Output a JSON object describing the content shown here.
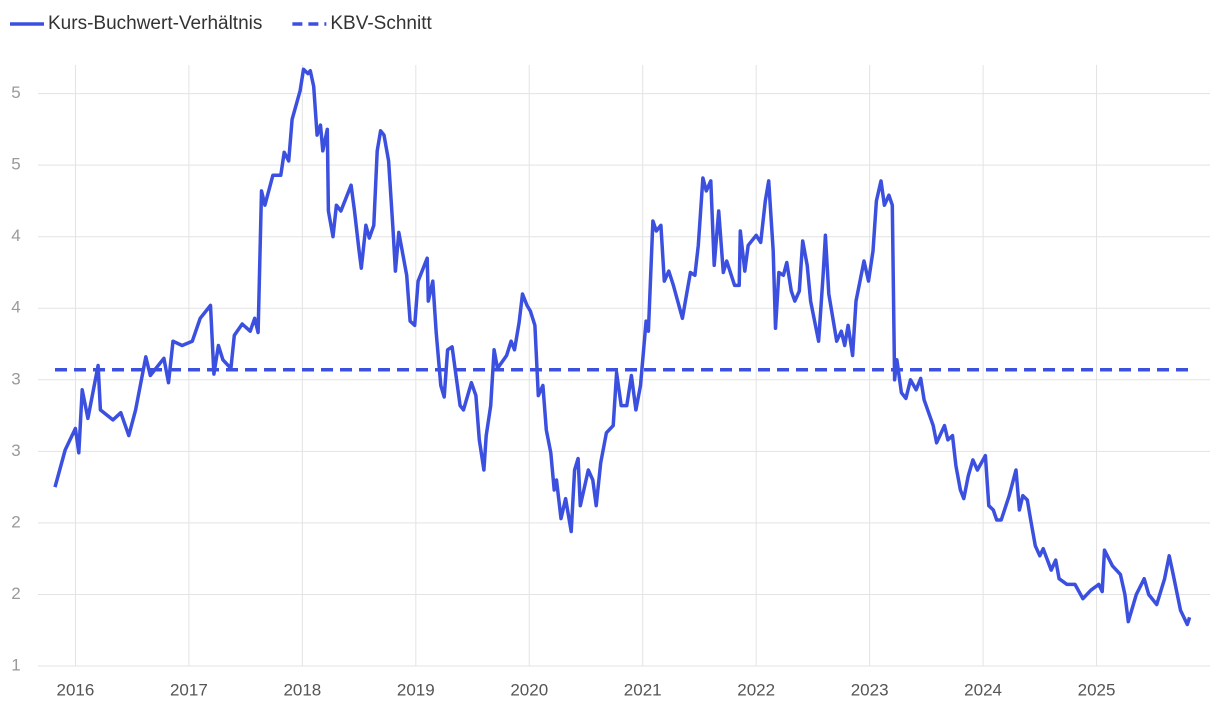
{
  "chart_data": {
    "type": "line",
    "legend": "top-left",
    "grid": true,
    "xlim": [
      2015.67,
      2026
    ],
    "ylim": [
      1,
      5.2
    ],
    "xticks": [
      2016,
      2017,
      2018,
      2019,
      2020,
      2021,
      2022,
      2023,
      2024,
      2025
    ],
    "yticks": [
      1,
      {
        "value": 1.5,
        "label": "2"
      },
      2,
      {
        "value": 2.5,
        "label": "3"
      },
      3,
      {
        "value": 3.5,
        "label": "4"
      },
      4,
      {
        "value": 4.5,
        "label": "5"
      },
      5
    ],
    "x": [
      2015.82,
      2015.91,
      2016.0,
      2016.03,
      2016.06,
      2016.11,
      2016.2,
      2016.22,
      2016.33,
      2016.4,
      2016.47,
      2016.53,
      2016.62,
      2016.66,
      2016.78,
      2016.82,
      2016.86,
      2016.94,
      2017.03,
      2017.1,
      2017.19,
      2017.22,
      2017.26,
      2017.3,
      2017.37,
      2017.4,
      2017.47,
      2017.54,
      2017.58,
      2017.61,
      2017.64,
      2017.67,
      2017.74,
      2017.81,
      2017.84,
      2017.88,
      2017.91,
      2017.98,
      2018.01,
      2018.05,
      2018.07,
      2018.1,
      2018.13,
      2018.16,
      2018.18,
      2018.22,
      2018.23,
      2018.27,
      2018.3,
      2018.34,
      2018.43,
      2018.46,
      2018.5,
      2018.52,
      2018.56,
      2018.59,
      2018.63,
      2018.66,
      2018.69,
      2018.72,
      2018.76,
      2018.8,
      2018.82,
      2018.85,
      2018.92,
      2018.95,
      2018.99,
      2019.02,
      2019.1,
      2019.11,
      2019.15,
      2019.18,
      2019.22,
      2019.25,
      2019.28,
      2019.32,
      2019.39,
      2019.42,
      2019.49,
      2019.53,
      2019.56,
      2019.6,
      2019.62,
      2019.66,
      2019.69,
      2019.72,
      2019.8,
      2019.84,
      2019.87,
      2019.91,
      2019.94,
      2019.98,
      2020.01,
      2020.05,
      2020.08,
      2020.12,
      2020.15,
      2020.19,
      2020.22,
      2020.24,
      2020.28,
      2020.32,
      2020.37,
      2020.4,
      2020.43,
      2020.45,
      2020.52,
      2020.56,
      2020.59,
      2020.63,
      2020.68,
      2020.74,
      2020.77,
      2020.81,
      2020.86,
      2020.9,
      2020.94,
      2020.98,
      2021.03,
      2021.05,
      2021.09,
      2021.12,
      2021.16,
      2021.19,
      2021.23,
      2021.27,
      2021.35,
      2021.42,
      2021.46,
      2021.49,
      2021.53,
      2021.56,
      2021.6,
      2021.63,
      2021.67,
      2021.71,
      2021.74,
      2021.81,
      2021.85,
      2021.86,
      2021.9,
      2021.93,
      2022.0,
      2022.04,
      2022.08,
      2022.11,
      2022.15,
      2022.17,
      2022.2,
      2022.24,
      2022.27,
      2022.31,
      2022.34,
      2022.38,
      2022.41,
      2022.45,
      2022.48,
      2022.55,
      2022.59,
      2022.61,
      2022.64,
      2022.71,
      2022.75,
      2022.78,
      2022.81,
      2022.85,
      2022.88,
      2022.95,
      2022.99,
      2023.03,
      2023.06,
      2023.1,
      2023.13,
      2023.17,
      2023.2,
      2023.22,
      2023.24,
      2023.28,
      2023.32,
      2023.36,
      2023.41,
      2023.45,
      2023.48,
      2023.56,
      2023.59,
      2023.66,
      2023.69,
      2023.73,
      2023.76,
      2023.8,
      2023.83,
      2023.87,
      2023.91,
      2023.95,
      2024.02,
      2024.05,
      2024.09,
      2024.12,
      2024.16,
      2024.23,
      2024.29,
      2024.32,
      2024.35,
      2024.39,
      2024.42,
      2024.46,
      2024.5,
      2024.53,
      2024.6,
      2024.64,
      2024.67,
      2024.74,
      2024.81,
      2024.88,
      2024.95,
      2025.02,
      2025.05,
      2025.07,
      2025.14,
      2025.21,
      2025.25,
      2025.28,
      2025.35,
      2025.42,
      2025.46,
      2025.53,
      2025.6,
      2025.64,
      2025.67,
      2025.74,
      2025.8,
      2025.82
    ],
    "series": [
      {
        "name": "Kurs-Buchwert-Verhältnis",
        "color": "#3c50e0",
        "values": [
          2.25,
          2.51,
          2.66,
          2.49,
          2.93,
          2.73,
          3.1,
          2.79,
          2.72,
          2.77,
          2.61,
          2.79,
          3.16,
          3.03,
          3.15,
          2.98,
          3.27,
          3.24,
          3.27,
          3.43,
          3.52,
          3.04,
          3.24,
          3.14,
          3.08,
          3.31,
          3.39,
          3.34,
          3.43,
          3.33,
          4.32,
          4.22,
          4.43,
          4.43,
          4.59,
          4.53,
          4.82,
          5.02,
          5.17,
          5.14,
          5.16,
          5.05,
          4.71,
          4.78,
          4.6,
          4.75,
          4.18,
          4.0,
          4.22,
          4.18,
          4.36,
          4.18,
          3.9,
          3.78,
          4.08,
          3.99,
          4.08,
          4.6,
          4.74,
          4.71,
          4.53,
          4.04,
          3.76,
          4.03,
          3.73,
          3.41,
          3.38,
          3.69,
          3.85,
          3.55,
          3.69,
          3.33,
          2.96,
          2.88,
          3.21,
          3.23,
          2.82,
          2.79,
          2.98,
          2.89,
          2.58,
          2.37,
          2.61,
          2.82,
          3.21,
          3.08,
          3.17,
          3.27,
          3.21,
          3.4,
          3.6,
          3.52,
          3.48,
          3.38,
          2.89,
          2.96,
          2.65,
          2.49,
          2.23,
          2.3,
          2.03,
          2.17,
          1.94,
          2.37,
          2.45,
          2.12,
          2.37,
          2.3,
          2.12,
          2.42,
          2.63,
          2.68,
          3.05,
          2.82,
          2.82,
          3.03,
          2.79,
          2.96,
          3.41,
          3.34,
          4.11,
          4.04,
          4.08,
          3.69,
          3.76,
          3.66,
          3.43,
          3.75,
          3.73,
          3.94,
          4.41,
          4.32,
          4.39,
          3.8,
          4.18,
          3.75,
          3.83,
          3.66,
          3.66,
          4.04,
          3.76,
          3.94,
          4.01,
          3.96,
          4.25,
          4.39,
          3.9,
          3.36,
          3.75,
          3.73,
          3.82,
          3.62,
          3.55,
          3.62,
          3.97,
          3.8,
          3.55,
          3.27,
          3.73,
          4.01,
          3.6,
          3.27,
          3.34,
          3.24,
          3.38,
          3.17,
          3.55,
          3.83,
          3.69,
          3.9,
          4.25,
          4.39,
          4.22,
          4.29,
          4.22,
          3.0,
          3.14,
          2.91,
          2.87,
          3.0,
          2.93,
          3.01,
          2.86,
          2.68,
          2.56,
          2.68,
          2.58,
          2.61,
          2.4,
          2.23,
          2.17,
          2.33,
          2.44,
          2.37,
          2.47,
          2.12,
          2.09,
          2.02,
          2.02,
          2.19,
          2.37,
          2.09,
          2.19,
          2.16,
          2.02,
          1.84,
          1.77,
          1.82,
          1.67,
          1.74,
          1.61,
          1.57,
          1.57,
          1.47,
          1.53,
          1.57,
          1.52,
          1.81,
          1.7,
          1.64,
          1.5,
          1.31,
          1.5,
          1.61,
          1.5,
          1.43,
          1.61,
          1.77,
          1.66,
          1.39,
          1.29,
          1.34
        ]
      },
      {
        "name": "KBV-Schnitt",
        "color": "#3c50e0",
        "dashed": true,
        "value": 3.07
      }
    ]
  }
}
